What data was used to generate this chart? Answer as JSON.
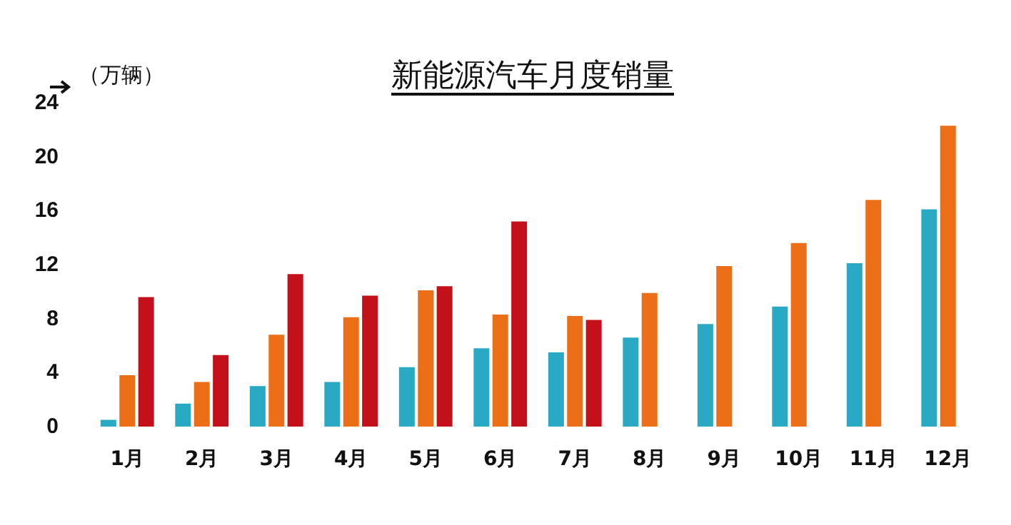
{
  "chart_data": {
    "type": "bar",
    "title": "新能源汽车月度销量",
    "ylabel": "（万辆）",
    "categories": [
      "1月",
      "2月",
      "3月",
      "4月",
      "5月",
      "6月",
      "7月",
      "8月",
      "9月",
      "10月",
      "11月",
      "12月"
    ],
    "series": [
      {
        "color": "#29a9c4",
        "values": [
          0.5,
          1.7,
          3.0,
          3.3,
          4.4,
          5.8,
          5.5,
          6.6,
          7.6,
          8.9,
          12.1,
          16.1
        ]
      },
      {
        "color": "#ec6e16",
        "values": [
          3.8,
          3.3,
          6.8,
          8.1,
          10.1,
          8.3,
          8.2,
          9.9,
          11.9,
          13.6,
          16.8,
          22.3
        ]
      },
      {
        "color": "#c4101a",
        "values": [
          9.6,
          5.3,
          11.3,
          9.7,
          10.4,
          15.2,
          7.9,
          null,
          null,
          null,
          null,
          null
        ]
      }
    ],
    "ylim": [
      0,
      24
    ],
    "yticks": [
      0,
      4,
      8,
      12,
      16,
      20,
      24
    ],
    "grid": false
  }
}
